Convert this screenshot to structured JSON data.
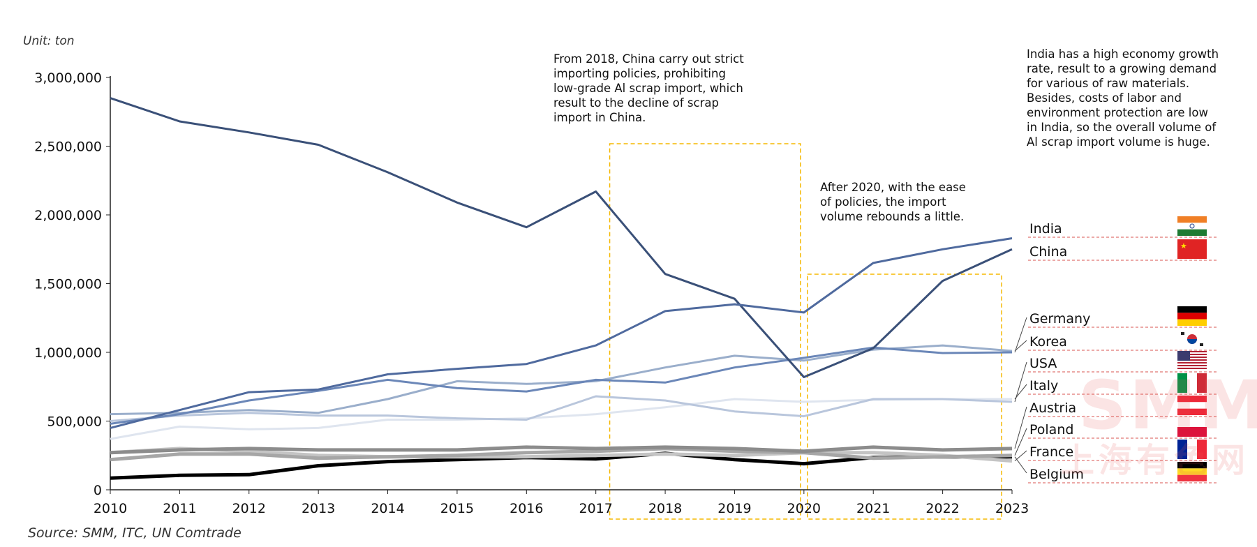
{
  "unit_label": "Unit: ton",
  "source_label": "Source: SMM, ITC, UN Comtrade",
  "annotations": {
    "note_2018": "From 2018, China carry out strict\nimporting policies, prohibiting\nlow-grade Al scrap import, which\nresult to the decline of scrap\nimport in China.",
    "note_2020": "After 2020, with the ease\nof policies, the import\nvolume rebounds a little.",
    "note_india": "India has a high economy growth\nrate, result to a growing demand\nfor various of raw materials.\nBesides, costs of labor and\nenvironment protection are low\nin India, so the overall volume of\nAl scrap import volume is huge."
  },
  "watermark": {
    "text": "SMM",
    "subtext": "上海有色网"
  },
  "colors": {
    "highlight_box": "#f5b800",
    "legend_divider": "#d9534f"
  },
  "chart_data": {
    "type": "line",
    "x": [
      2010,
      2011,
      2012,
      2013,
      2014,
      2015,
      2016,
      2017,
      2018,
      2019,
      2020,
      2021,
      2022,
      2023
    ],
    "ylim": [
      0,
      3000000
    ],
    "yticks": [
      0,
      500000,
      1000000,
      1500000,
      2000000,
      2500000,
      3000000
    ],
    "ytick_labels": [
      "0",
      "500,000",
      "1,000,000",
      "1,500,000",
      "2,000,000",
      "2,500,000",
      "3,000,000"
    ],
    "grid": false,
    "legend_position": "right",
    "highlight_ranges": [
      [
        2017.2,
        2019.95
      ],
      [
        2020.05,
        2022.85
      ]
    ],
    "series": [
      {
        "name": "India",
        "flag": "india-flag-icon",
        "color": "#4f6a9e",
        "width": 3,
        "values": [
          450000,
          580000,
          710000,
          730000,
          840000,
          880000,
          915000,
          1050000,
          1300000,
          1350000,
          1290000,
          1650000,
          1750000,
          1830000
        ]
      },
      {
        "name": "China",
        "flag": "china-flag-icon",
        "color": "#3a5078",
        "width": 3,
        "values": [
          2850000,
          2680000,
          2600000,
          2510000,
          2310000,
          2090000,
          1910000,
          2170000,
          1570000,
          1390000,
          820000,
          1030000,
          1520000,
          1750000
        ]
      },
      {
        "name": "Germany",
        "flag": "germany-flag-icon",
        "color": "#6b87b8",
        "width": 3,
        "values": [
          480000,
          550000,
          650000,
          720000,
          800000,
          740000,
          715000,
          800000,
          780000,
          890000,
          960000,
          1035000,
          995000,
          1000000
        ]
      },
      {
        "name": "Korea",
        "flag": "korea-flag-icon",
        "color": "#9aaecb",
        "width": 3,
        "values": [
          550000,
          560000,
          580000,
          560000,
          660000,
          790000,
          770000,
          790000,
          890000,
          975000,
          940000,
          1020000,
          1050000,
          1010000
        ]
      },
      {
        "name": "USA",
        "flag": "usa-flag-icon",
        "color": "#b9c6dc",
        "width": 3,
        "values": [
          500000,
          540000,
          560000,
          540000,
          540000,
          520000,
          510000,
          680000,
          650000,
          570000,
          535000,
          660000,
          660000,
          640000
        ]
      },
      {
        "name": "Italy",
        "flag": "italy-flag-icon",
        "color": "#dfe5ef",
        "width": 3,
        "values": [
          370000,
          460000,
          440000,
          450000,
          510000,
          510000,
          520000,
          550000,
          600000,
          660000,
          640000,
          655000,
          660000,
          660000
        ]
      },
      {
        "name": "Austria",
        "flag": "austria-flag-icon",
        "color": "#8c8c8c",
        "width": 5,
        "values": [
          270000,
          290000,
          300000,
          290000,
          290000,
          290000,
          310000,
          300000,
          310000,
          300000,
          280000,
          310000,
          290000,
          300000
        ]
      },
      {
        "name": "Poland",
        "flag": "poland-flag-icon",
        "color": "#a6a6a6",
        "width": 5,
        "values": [
          220000,
          260000,
          260000,
          230000,
          240000,
          250000,
          270000,
          280000,
          300000,
          280000,
          270000,
          230000,
          240000,
          250000
        ]
      },
      {
        "name": "France",
        "flag": "france-flag-icon",
        "color": "#c4c4c4",
        "width": 5,
        "values": [
          270000,
          300000,
          280000,
          250000,
          240000,
          240000,
          240000,
          250000,
          260000,
          250000,
          270000,
          270000,
          250000,
          210000
        ]
      },
      {
        "name": "Belgium",
        "flag": "belgium-flag-icon",
        "color": "#000000",
        "width": 5,
        "values": [
          85000,
          105000,
          110000,
          175000,
          205000,
          220000,
          235000,
          225000,
          265000,
          220000,
          190000,
          235000,
          240000,
          240000
        ]
      }
    ]
  }
}
